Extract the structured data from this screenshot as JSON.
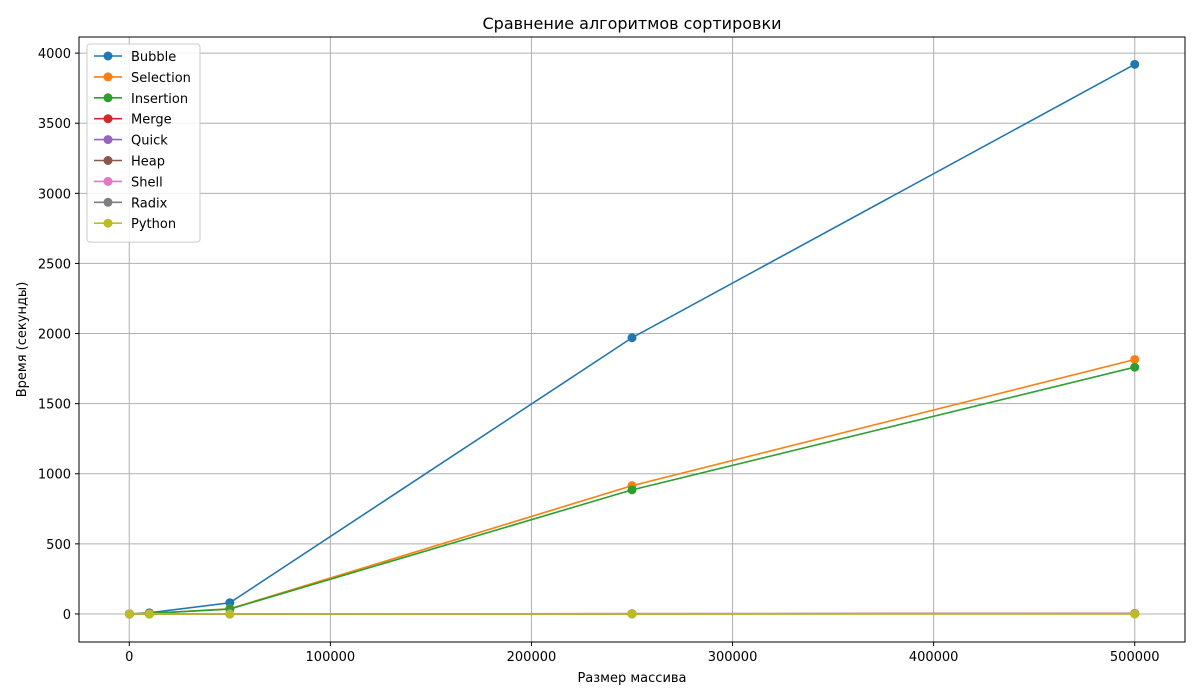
{
  "chart_data": {
    "type": "line",
    "title": "Сравнение алгоритмов сортировки",
    "xlabel": "Размер массива",
    "ylabel": "Время (секунды)",
    "x": [
      100,
      10000,
      50000,
      250000,
      500000
    ],
    "xlim": [
      -25000,
      525000
    ],
    "ylim": [
      -200,
      4115
    ],
    "xticks": [
      0,
      100000,
      200000,
      300000,
      400000,
      500000
    ],
    "yticks": [
      0,
      500,
      1000,
      1500,
      2000,
      2500,
      3000,
      3500,
      4000
    ],
    "grid": true,
    "legend_position": "upper-left",
    "series": [
      {
        "name": "Bubble",
        "color": "#1f77b4",
        "values": [
          0.001,
          8,
          80,
          1970,
          3920
        ]
      },
      {
        "name": "Selection",
        "color": "#ff7f0e",
        "values": [
          0.001,
          3.6,
          37,
          915,
          1815
        ]
      },
      {
        "name": "Insertion",
        "color": "#2ca02c",
        "values": [
          0.001,
          3.5,
          35,
          885,
          1760
        ]
      },
      {
        "name": "Merge",
        "color": "#d62728",
        "values": [
          0.001,
          0.04,
          0.2,
          1.2,
          2.5
        ]
      },
      {
        "name": "Quick",
        "color": "#9467bd",
        "values": [
          0.001,
          0.03,
          0.15,
          0.9,
          1.9
        ]
      },
      {
        "name": "Heap",
        "color": "#8c564b",
        "values": [
          0.001,
          0.05,
          0.3,
          1.7,
          3.6
        ]
      },
      {
        "name": "Shell",
        "color": "#e377c2",
        "values": [
          0.001,
          0.04,
          0.25,
          1.6,
          3.4
        ]
      },
      {
        "name": "Radix",
        "color": "#7f7f7f",
        "values": [
          0.001,
          0.02,
          0.1,
          0.5,
          1.0
        ]
      },
      {
        "name": "Python",
        "color": "#bcbd22",
        "values": [
          0.0,
          0.001,
          0.006,
          0.04,
          0.09
        ]
      }
    ]
  }
}
